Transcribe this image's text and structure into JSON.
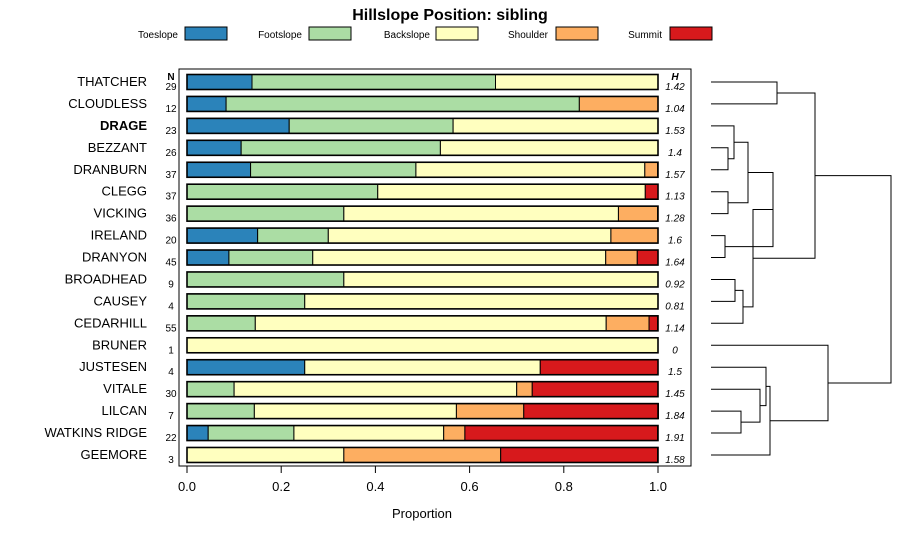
{
  "chart_data": {
    "type": "bar",
    "stacked": true,
    "orientation": "horizontal",
    "title": "Hillslope Position: sibling",
    "xlabel": "Proportion",
    "xlim": [
      0,
      1
    ],
    "xticks": [
      "0.0",
      "0.2",
      "0.4",
      "0.6",
      "0.8",
      "1.0"
    ],
    "n_header": "N",
    "h_header": "H",
    "legend": [
      {
        "name": "Toeslope",
        "color": "#2b83ba"
      },
      {
        "name": "Footslope",
        "color": "#abdda4"
      },
      {
        "name": "Backslope",
        "color": "#ffffbf"
      },
      {
        "name": "Shoulder",
        "color": "#fdae61"
      },
      {
        "name": "Summit",
        "color": "#d7191c"
      }
    ],
    "rows": [
      {
        "name": "THATCHER",
        "bold": false,
        "n": "29",
        "h": "1.42",
        "values": [
          0.138,
          0.517,
          0.345,
          0,
          0
        ]
      },
      {
        "name": "CLOUDLESS",
        "bold": false,
        "n": "12",
        "h": "1.04",
        "values": [
          0.083,
          0.75,
          0,
          0.167,
          0
        ]
      },
      {
        "name": "DRAGE",
        "bold": true,
        "n": "23",
        "h": "1.53",
        "values": [
          0.217,
          0.348,
          0.435,
          0,
          0
        ]
      },
      {
        "name": "BEZZANT",
        "bold": false,
        "n": "26",
        "h": "1.4",
        "values": [
          0.115,
          0.423,
          0.462,
          0,
          0
        ]
      },
      {
        "name": "DRANBURN",
        "bold": false,
        "n": "37",
        "h": "1.57",
        "values": [
          0.135,
          0.351,
          0.486,
          0.027,
          0
        ]
      },
      {
        "name": "CLEGG",
        "bold": false,
        "n": "37",
        "h": "1.13",
        "values": [
          0,
          0.405,
          0.568,
          0,
          0.027
        ]
      },
      {
        "name": "VICKING",
        "bold": false,
        "n": "36",
        "h": "1.28",
        "values": [
          0,
          0.333,
          0.583,
          0.083,
          0
        ]
      },
      {
        "name": "IRELAND",
        "bold": false,
        "n": "20",
        "h": "1.6",
        "values": [
          0.15,
          0.15,
          0.6,
          0.1,
          0
        ]
      },
      {
        "name": "DRANYON",
        "bold": false,
        "n": "45",
        "h": "1.64",
        "values": [
          0.089,
          0.178,
          0.622,
          0.067,
          0.044
        ]
      },
      {
        "name": "BROADHEAD",
        "bold": false,
        "n": "9",
        "h": "0.92",
        "values": [
          0,
          0.333,
          0.667,
          0,
          0
        ]
      },
      {
        "name": "CAUSEY",
        "bold": false,
        "n": "4",
        "h": "0.81",
        "values": [
          0,
          0.25,
          0.75,
          0,
          0
        ]
      },
      {
        "name": "CEDARHILL",
        "bold": false,
        "n": "55",
        "h": "1.14",
        "values": [
          0,
          0.145,
          0.745,
          0.091,
          0.018
        ]
      },
      {
        "name": "BRUNER",
        "bold": false,
        "n": "1",
        "h": "0",
        "values": [
          0,
          0,
          1,
          0,
          0
        ]
      },
      {
        "name": "JUSTESEN",
        "bold": false,
        "n": "4",
        "h": "1.5",
        "values": [
          0.25,
          0,
          0.5,
          0,
          0.25
        ]
      },
      {
        "name": "VITALE",
        "bold": false,
        "n": "30",
        "h": "1.45",
        "values": [
          0,
          0.1,
          0.6,
          0.033,
          0.267
        ]
      },
      {
        "name": "LILCAN",
        "bold": false,
        "n": "7",
        "h": "1.84",
        "values": [
          0,
          0.143,
          0.429,
          0.143,
          0.286
        ]
      },
      {
        "name": "WATKINS RIDGE",
        "bold": false,
        "n": "22",
        "h": "1.91",
        "values": [
          0.045,
          0.182,
          0.318,
          0.045,
          0.409
        ]
      },
      {
        "name": "GEEMORE",
        "bold": false,
        "n": "3",
        "h": "1.58",
        "values": [
          0,
          0,
          0.333,
          0.333,
          0.333
        ]
      }
    ]
  }
}
